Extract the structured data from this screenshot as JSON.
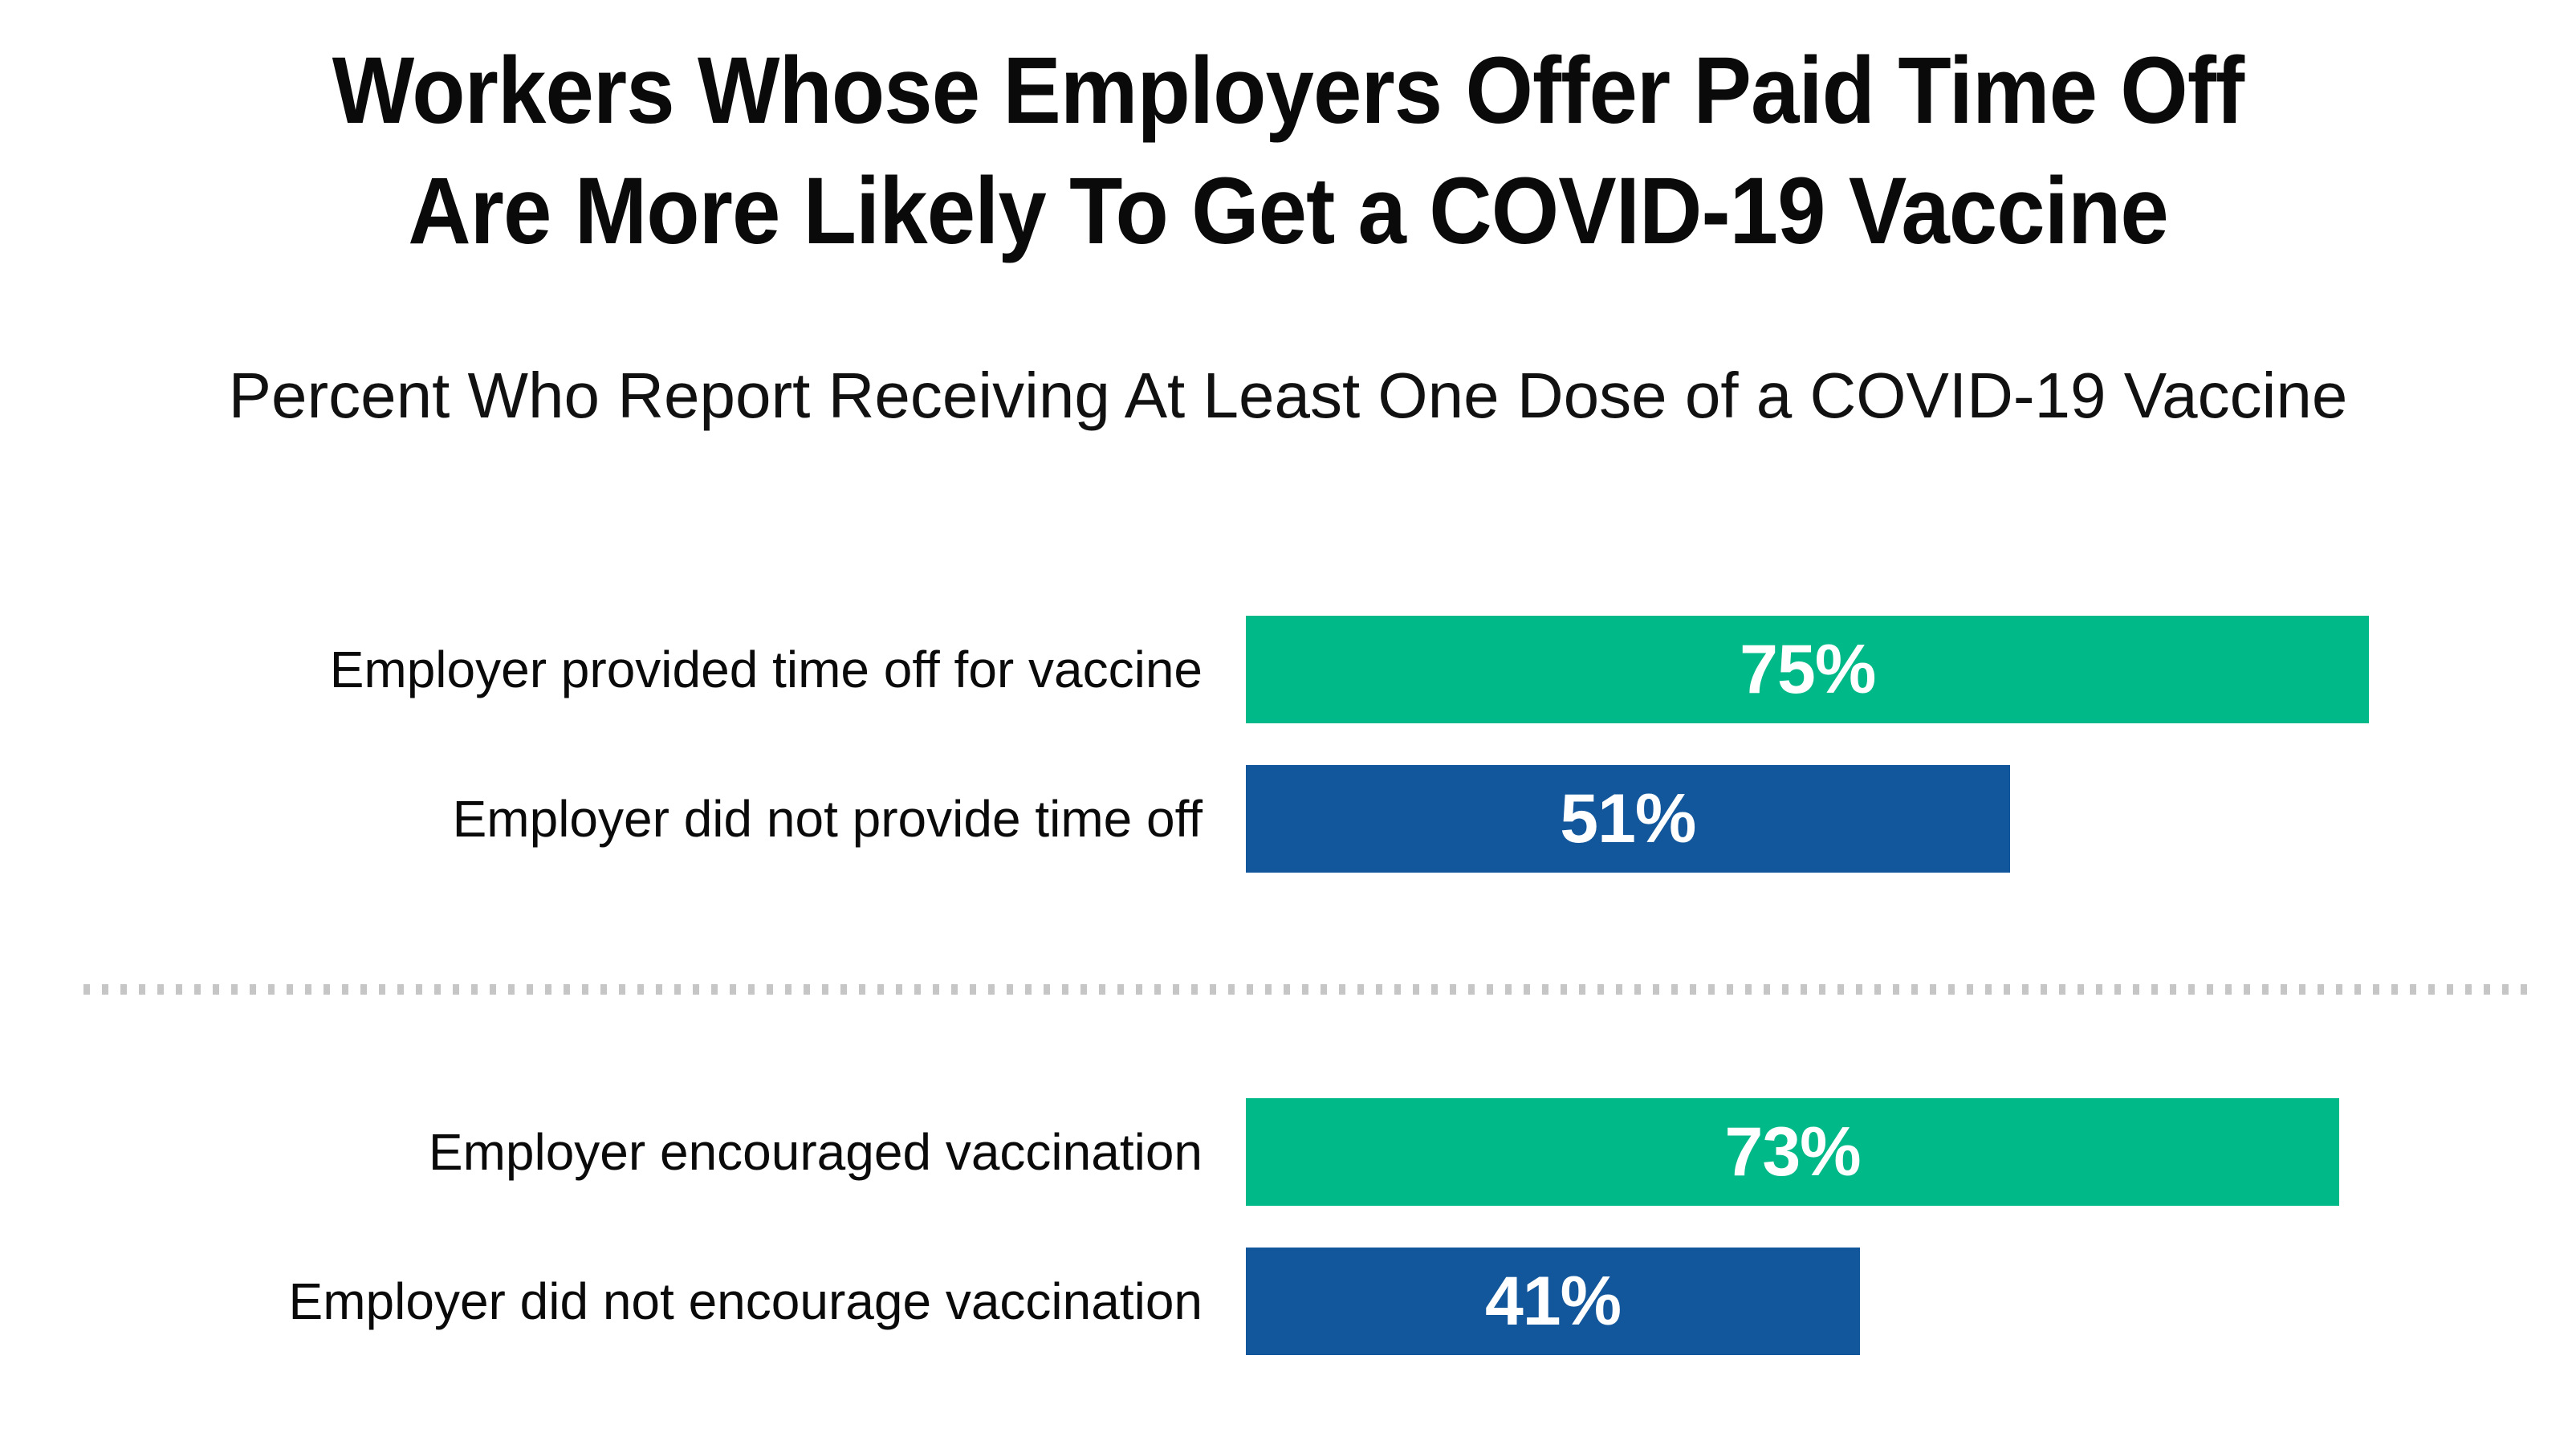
{
  "title": {
    "line1": "Workers Whose Employers Offer Paid Time Off",
    "line2": "Are More Likely To Get a COVID-19 Vaccine"
  },
  "subtitle": "Percent Who Report Receiving At Least One Dose of a COVID-19 Vaccine",
  "colors": {
    "green_bar": "#00B988",
    "blue_bar": "#12579B",
    "bar_value_text": "#FFFFFF",
    "title_text": "#0A0A0A",
    "divider": "#C6C6C6",
    "background": "#FFFFFF"
  },
  "chart_data": {
    "type": "bar",
    "orientation": "horizontal",
    "title": "Workers Whose Employers Offer Paid Time Off Are More Likely To Get a COVID-19 Vaccine",
    "subtitle": "Percent Who Report Receiving At Least One Dose of a COVID-19 Vaccine",
    "unit": "percent",
    "xlim": [
      0,
      88.8
    ],
    "grid": false,
    "legend": false,
    "value_labels_inside_bars": true,
    "categories": [
      "Employer provided time off for vaccine",
      "Employer did not provide time off",
      "Employer encouraged vaccination",
      "Employer did not encourage vaccination"
    ],
    "values": [
      75,
      51,
      73,
      41
    ],
    "groups": [
      {
        "rows": [
          {
            "label": "Employer provided time off for vaccine",
            "value": 75,
            "value_label": "75%",
            "color": "#00B988",
            "color_name": "green"
          },
          {
            "label": "Employer did not provide time off",
            "value": 51,
            "value_label": "51%",
            "color": "#12579B",
            "color_name": "blue"
          }
        ]
      },
      {
        "rows": [
          {
            "label": "Employer encouraged vaccination",
            "value": 73,
            "value_label": "73%",
            "color": "#00B988",
            "color_name": "green"
          },
          {
            "label": "Employer did not encourage vaccination",
            "value": 41,
            "value_label": "41%",
            "color": "#12579B",
            "color_name": "blue"
          }
        ]
      }
    ]
  }
}
